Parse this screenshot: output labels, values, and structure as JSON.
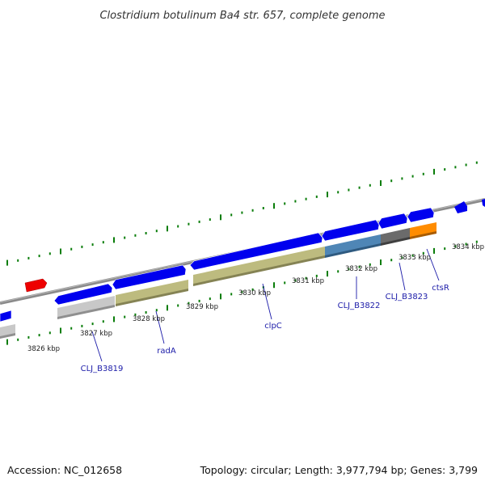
{
  "title": "Clostridium botulinum Ba4 str. 657, complete genome",
  "footer": {
    "accession": "Accession: NC_012658",
    "summary": "Topology: circular; Length: 3,977,794 bp; Genes: 3,799"
  },
  "colors": {
    "backbone": "#8a8a8a",
    "cds": "#0000ee",
    "cds_highlight": "#ee0000",
    "cog_olive": "#bdbb7f",
    "cog_silver": "#c8c8c8",
    "cog_steel": "#4f86b6",
    "cog_dark": "#6b6b6b",
    "cog_orange": "#ff8c00",
    "tick": "#0a7d0a",
    "label": "#1a1aa8"
  },
  "scale_labels": [
    "3826 kbp",
    "3827 kbp",
    "3828 kbp",
    "3829 kbp",
    "3830 kbp",
    "3831 kbp",
    "3832 kbp",
    "3833 kbp",
    "3834 kbp"
  ],
  "gene_labels": [
    "CLJ_B3819",
    "radA",
    "clpC",
    "CLJ_B3822",
    "CLJ_B3823",
    "ctsR"
  ]
}
